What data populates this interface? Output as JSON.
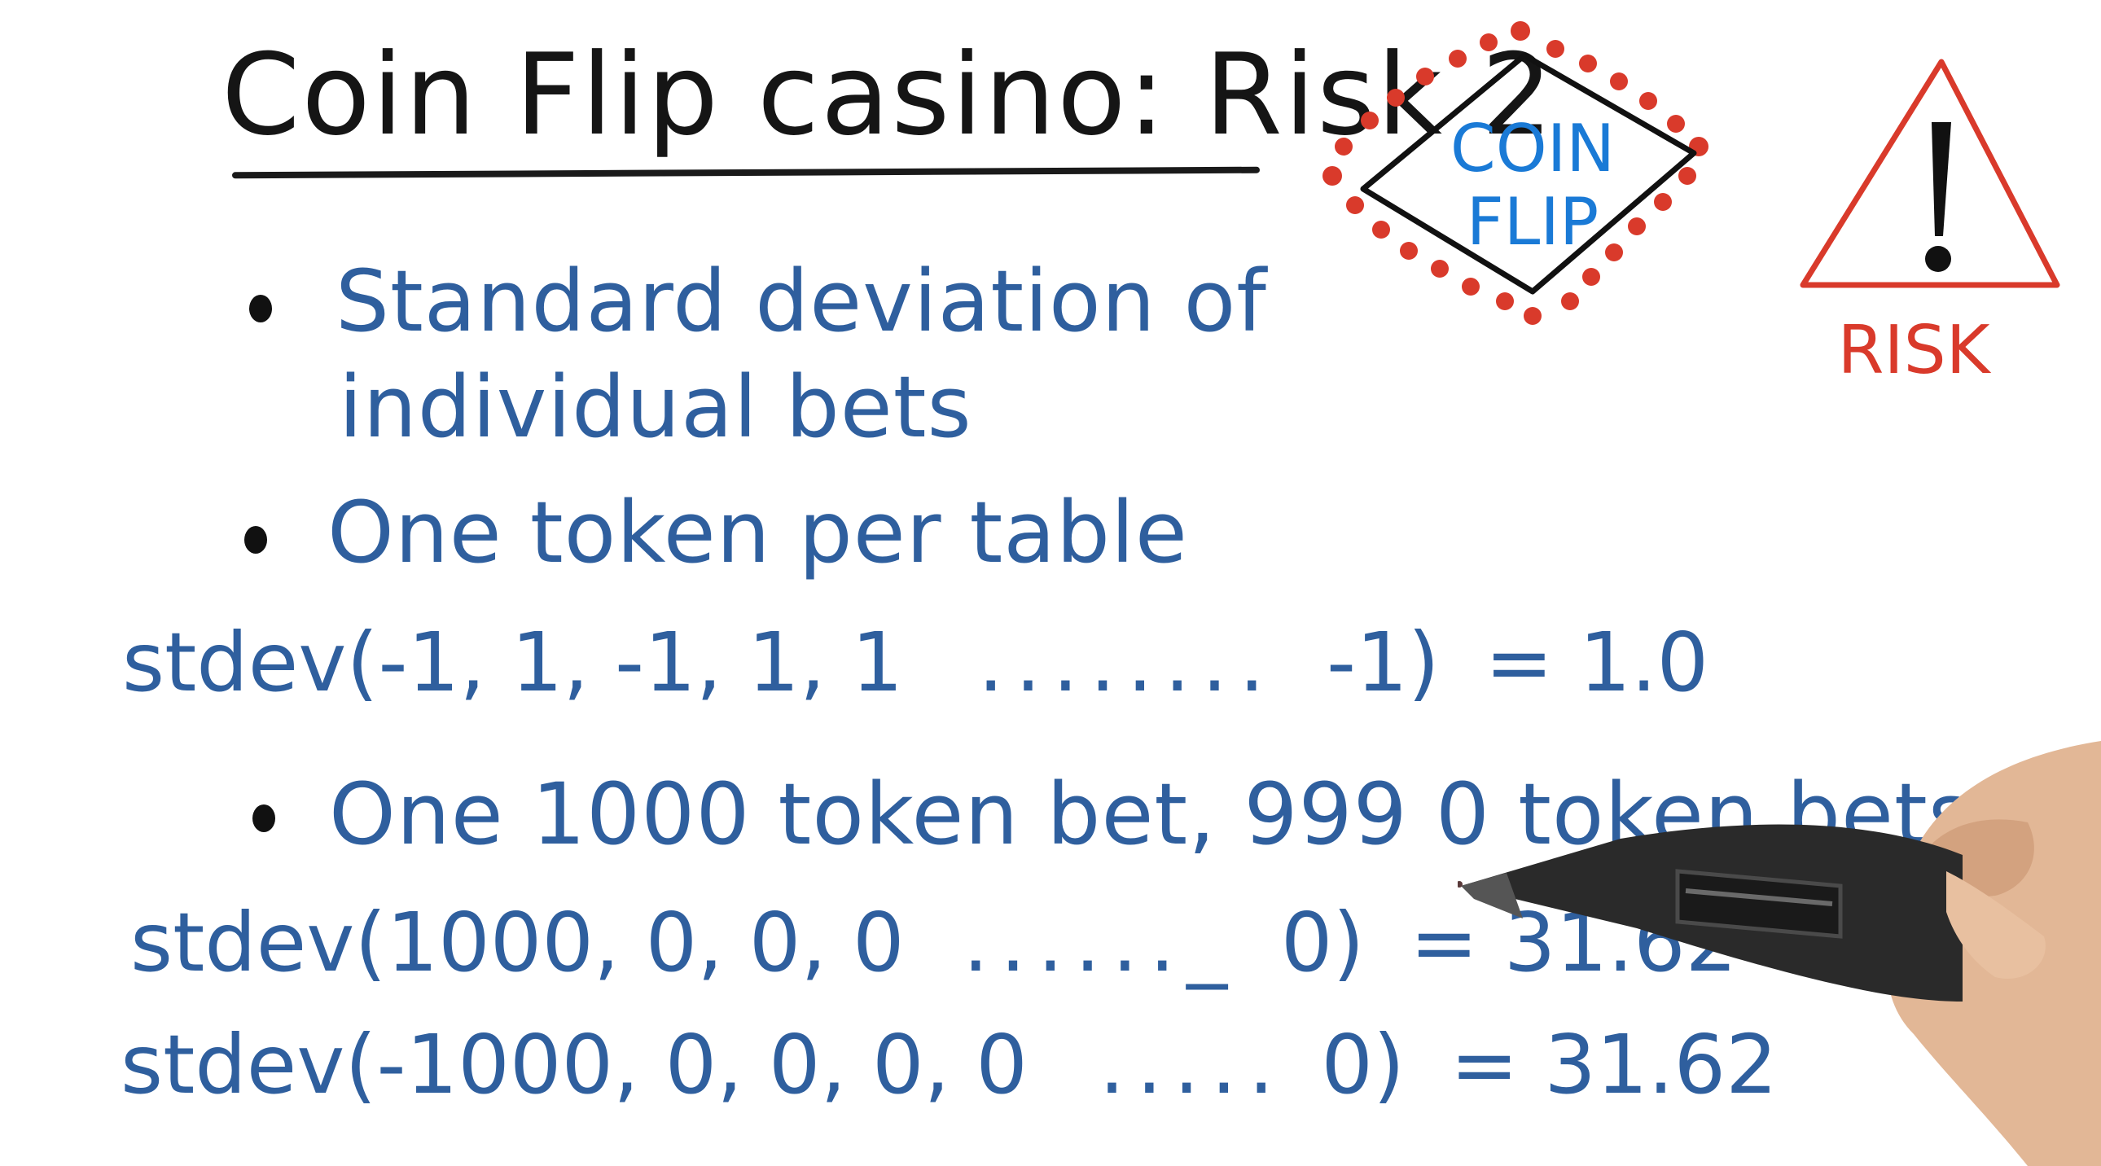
{
  "title": "Coin Flip casino: Risk 2",
  "logo": {
    "line1": "COIN",
    "line2": "FLIP"
  },
  "risk_badge": {
    "icon": "warning-triangle-icon",
    "label": "RISK"
  },
  "bullets": [
    {
      "text_line1": "Standard deviation of",
      "text_line2": "individual bets"
    },
    {
      "text_line1": "One token per table"
    },
    {
      "text_line1": "One 1000 token bet, 999 0 token bets"
    }
  ],
  "formulas": {
    "one_token": {
      "lhs": "stdev(-1, 1, -1, 1, 1",
      "dots": "........",
      "tail": "-1)",
      "rhs": "= 1.0"
    },
    "positive_bet": {
      "lhs": "stdev(1000, 0, 0, 0",
      "dots": "......_",
      "tail": "0)",
      "rhs": "= 31.62"
    },
    "negative_bet": {
      "lhs": "stdev(-1000, 0, 0, 0, 0",
      "dots": ".....",
      "tail": "0)",
      "rhs": "= 31.62"
    }
  },
  "colors": {
    "ink_black": "#151515",
    "ink_blue": "#2f5f9e",
    "logo_blue": "#1a7ad6",
    "ink_red": "#d93a2b"
  }
}
